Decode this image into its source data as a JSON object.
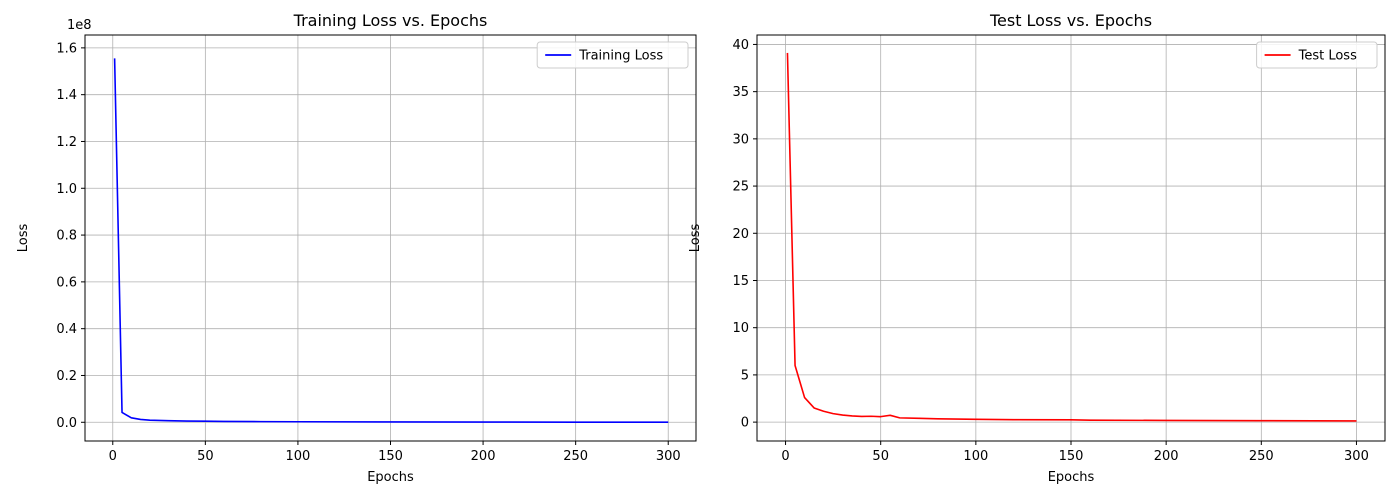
{
  "chart_data": [
    {
      "type": "line",
      "title": "Training Loss vs. Epochs",
      "xlabel": "Epochs",
      "ylabel": "Loss",
      "y_offset_label": "1e8",
      "xlim": [
        -15,
        315
      ],
      "ylim": [
        -0.08,
        1.655
      ],
      "y_scale_factor": 100000000,
      "xticks": [
        0,
        50,
        100,
        150,
        200,
        250,
        300
      ],
      "xtick_labels": [
        "0",
        "50",
        "100",
        "150",
        "200",
        "250",
        "300"
      ],
      "yticks": [
        0.0,
        0.2,
        0.4,
        0.6,
        0.8,
        1.0,
        1.2,
        1.4,
        1.6
      ],
      "ytick_labels": [
        "0.0",
        "0.2",
        "0.4",
        "0.6",
        "0.8",
        "1.0",
        "1.2",
        "1.4",
        "1.6"
      ],
      "grid": true,
      "legend_position": "top-right",
      "series": [
        {
          "name": "Training Loss",
          "color": "#0000ff",
          "x": [
            1,
            5,
            10,
            15,
            20,
            30,
            40,
            50,
            60,
            80,
            100,
            150,
            200,
            250,
            300
          ],
          "y": [
            155500000,
            4200000,
            1900000,
            1200000,
            900000,
            700000,
            500000,
            450000,
            380000,
            280000,
            220000,
            140000,
            90000,
            60000,
            40000
          ]
        }
      ]
    },
    {
      "type": "line",
      "title": "Test Loss vs. Epochs",
      "xlabel": "Epochs",
      "ylabel": "Loss",
      "y_offset_label": "",
      "xlim": [
        -15,
        315
      ],
      "ylim": [
        -2.0,
        41.0
      ],
      "y_scale_factor": 1,
      "xticks": [
        0,
        50,
        100,
        150,
        200,
        250,
        300
      ],
      "xtick_labels": [
        "0",
        "50",
        "100",
        "150",
        "200",
        "250",
        "300"
      ],
      "yticks": [
        0,
        5,
        10,
        15,
        20,
        25,
        30,
        35,
        40
      ],
      "ytick_labels": [
        "0",
        "5",
        "10",
        "15",
        "20",
        "25",
        "30",
        "35",
        "40"
      ],
      "grid": true,
      "legend_position": "top-right",
      "series": [
        {
          "name": "Test Loss",
          "color": "#ff0000",
          "x": [
            1,
            5,
            10,
            15,
            20,
            25,
            30,
            35,
            40,
            45,
            50,
            55,
            60,
            70,
            80,
            90,
            100,
            120,
            150,
            160,
            200,
            250,
            300
          ],
          "y": [
            39.1,
            6.0,
            2.6,
            1.5,
            1.15,
            0.9,
            0.75,
            0.65,
            0.6,
            0.62,
            0.58,
            0.72,
            0.45,
            0.4,
            0.35,
            0.32,
            0.3,
            0.26,
            0.24,
            0.2,
            0.18,
            0.15,
            0.12
          ]
        }
      ]
    }
  ]
}
